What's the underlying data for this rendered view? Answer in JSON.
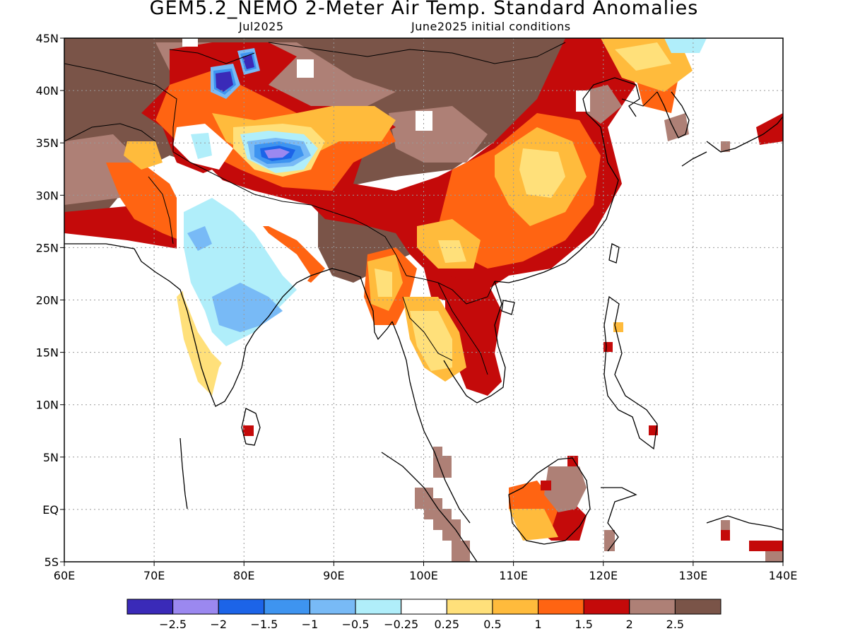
{
  "title": "GEM5.2_NEMO 2-Meter Air Temp. Standard Anomalies",
  "subtitle_left": "Jul2025",
  "subtitle_right": "June2025 initial conditions",
  "map": {
    "lon_range": [
      60,
      140
    ],
    "lat_range": [
      -5,
      45
    ],
    "grid": true,
    "x_ticks": [
      "60E",
      "70E",
      "80E",
      "90E",
      "100E",
      "110E",
      "120E",
      "130E",
      "140E"
    ],
    "y_ticks": [
      "45N",
      "40N",
      "35N",
      "30N",
      "25N",
      "20N",
      "15N",
      "10N",
      "5N",
      "EQ",
      "5S"
    ]
  },
  "colorbar": {
    "colors": [
      "#3a2ab8",
      "#9b88f0",
      "#1c64e8",
      "#3e94f0",
      "#78baf6",
      "#b0eefa",
      "#ffffff",
      "#ffe07a",
      "#ffbb3c",
      "#ff6412",
      "#c40a0a",
      "#ae8076",
      "#7a5448"
    ],
    "labels": [
      "-2.5",
      "-2",
      "-1.5",
      "-1",
      "-0.5",
      "-0.25",
      "0.25",
      "0.5",
      "1",
      "1.5",
      "2",
      "2.5"
    ]
  }
}
